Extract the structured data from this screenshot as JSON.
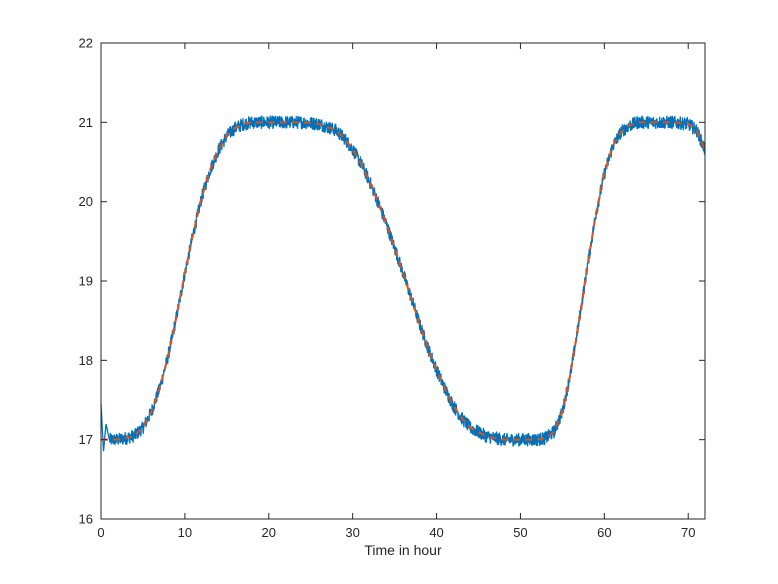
{
  "chart_data": {
    "type": "line",
    "title": "",
    "xlabel": "Time in hour",
    "ylabel": "",
    "xlim": [
      0,
      72
    ],
    "ylim": [
      16,
      22
    ],
    "xticks": [
      0,
      10,
      20,
      30,
      40,
      50,
      60,
      70
    ],
    "yticks": [
      16,
      17,
      18,
      19,
      20,
      21,
      22
    ],
    "grid": false,
    "box": true,
    "series": [
      {
        "style": "solid-noisy",
        "color": "#0072bd",
        "x": [
          0,
          0.3,
          0.6,
          1,
          2,
          3,
          4,
          5,
          6,
          7,
          8,
          9,
          10,
          11,
          12,
          13,
          14,
          15,
          16,
          17,
          18,
          20,
          22,
          24,
          26,
          28,
          29,
          30,
          31,
          32,
          33,
          34,
          35,
          36,
          37,
          38,
          39,
          40,
          41,
          42,
          43,
          44,
          46,
          48,
          50,
          52,
          53,
          54,
          55,
          56,
          57,
          58,
          59,
          60,
          61,
          62,
          63,
          64,
          66,
          68,
          70,
          71,
          72
        ],
        "y": [
          17.45,
          16.85,
          17.2,
          17.0,
          17.0,
          17.02,
          17.05,
          17.15,
          17.35,
          17.65,
          18.05,
          18.55,
          19.1,
          19.6,
          20.05,
          20.4,
          20.65,
          20.83,
          20.93,
          20.98,
          21.0,
          21.0,
          21.0,
          21.0,
          20.98,
          20.9,
          20.8,
          20.66,
          20.48,
          20.26,
          20.0,
          19.72,
          19.42,
          19.1,
          18.78,
          18.45,
          18.15,
          17.88,
          17.64,
          17.43,
          17.27,
          17.15,
          17.04,
          17.0,
          17.0,
          17.0,
          17.02,
          17.1,
          17.35,
          17.85,
          18.5,
          19.2,
          19.85,
          20.35,
          20.7,
          20.88,
          20.96,
          21.0,
          21.0,
          21.0,
          20.98,
          20.9,
          20.65
        ]
      },
      {
        "style": "dashed",
        "color": "#d95319",
        "x": [
          0,
          2,
          3,
          4,
          5,
          6,
          7,
          8,
          9,
          10,
          11,
          12,
          13,
          14,
          15,
          16,
          17,
          18,
          20,
          22,
          24,
          26,
          28,
          29,
          30,
          31,
          32,
          33,
          34,
          35,
          36,
          37,
          38,
          39,
          40,
          41,
          42,
          43,
          44,
          46,
          48,
          50,
          52,
          53,
          54,
          55,
          56,
          57,
          58,
          59,
          60,
          61,
          62,
          63,
          64,
          66,
          68,
          70,
          71,
          72
        ],
        "y": [
          17.0,
          17.0,
          17.02,
          17.05,
          17.15,
          17.35,
          17.65,
          18.05,
          18.55,
          19.1,
          19.6,
          20.05,
          20.4,
          20.65,
          20.83,
          20.93,
          20.98,
          21.0,
          21.0,
          21.0,
          21.0,
          20.98,
          20.9,
          20.8,
          20.66,
          20.48,
          20.26,
          20.0,
          19.72,
          19.42,
          19.1,
          18.78,
          18.45,
          18.15,
          17.88,
          17.64,
          17.43,
          17.27,
          17.15,
          17.04,
          17.0,
          17.0,
          17.0,
          17.02,
          17.1,
          17.35,
          17.85,
          18.5,
          19.2,
          19.85,
          20.35,
          20.7,
          20.88,
          20.96,
          21.0,
          21.0,
          21.0,
          20.98,
          20.9,
          20.65
        ]
      }
    ]
  }
}
